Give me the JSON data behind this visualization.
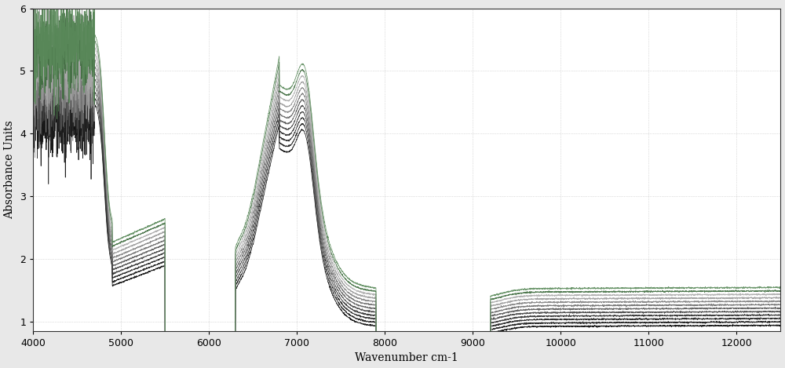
{
  "xlabel": "Wavenumber cm-1",
  "ylabel": "Absorbance Units",
  "xlim": [
    12500,
    4000
  ],
  "ylim": [
    0.85,
    6.0
  ],
  "yticks": [
    1,
    2,
    3,
    4,
    5,
    6
  ],
  "xticks": [
    12000,
    11000,
    10000,
    9000,
    8000,
    7000,
    6000,
    5000,
    4000
  ],
  "plot_bg_color": "#ffffff",
  "n_spectra": 12,
  "fig_bg": "#e8e8e8"
}
